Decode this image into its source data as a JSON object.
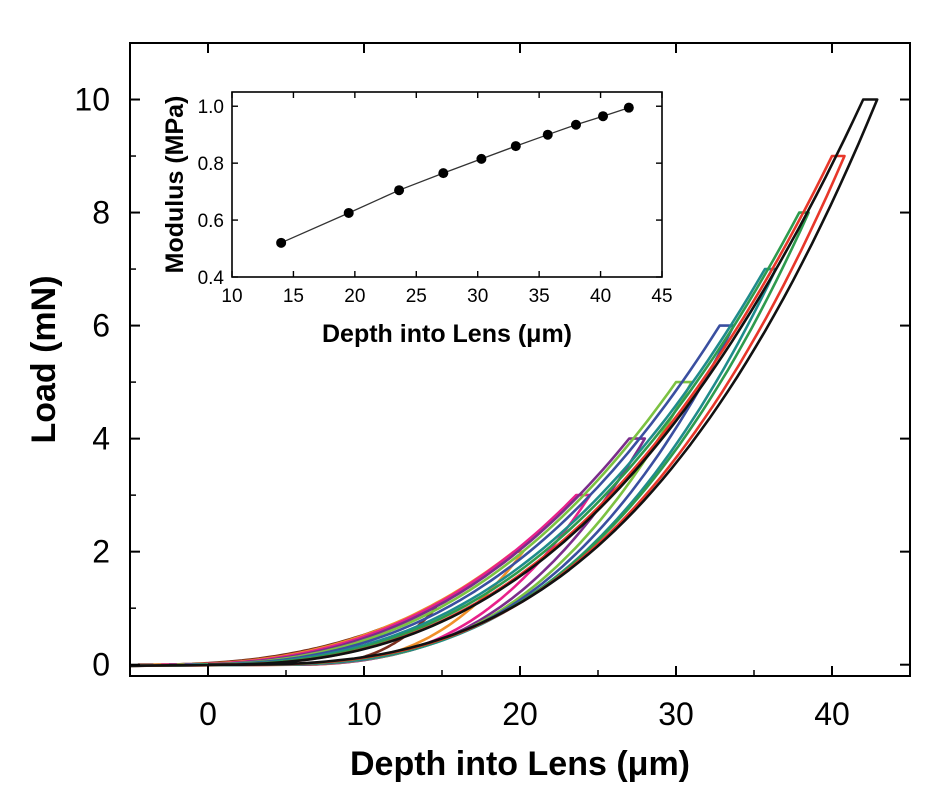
{
  "chart_data": [
    {
      "type": "line",
      "role": "main",
      "xlabel": "Depth into Lens (μm)",
      "ylabel": "Load (mN)",
      "xlim": [
        -5,
        45
      ],
      "ylim": [
        -0.2,
        11
      ],
      "xticks": [
        0,
        10,
        20,
        30,
        40
      ],
      "yticks": [
        0,
        2,
        4,
        6,
        8,
        10
      ],
      "grid": false,
      "series": [
        {
          "peak_load": 1,
          "loading_start_depth": -4.5,
          "unloading_end_depth": 5.5,
          "peak_depth": 14.2,
          "unload_depth": 14.6,
          "color": "#7a2e1e"
        },
        {
          "peak_load": 2,
          "loading_start_depth": -3.5,
          "unloading_end_depth": 5.0,
          "peak_depth": 19.6,
          "unload_depth": 20.2,
          "color": "#f0902a"
        },
        {
          "peak_load": 3,
          "loading_start_depth": -3.0,
          "unloading_end_depth": 4.5,
          "peak_depth": 23.6,
          "unload_depth": 24.5,
          "color": "#e8218a"
        },
        {
          "peak_load": 4,
          "loading_start_depth": -2.5,
          "unloading_end_depth": 4.0,
          "peak_depth": 27.0,
          "unload_depth": 28.0,
          "color": "#7b2d8b"
        },
        {
          "peak_load": 5,
          "loading_start_depth": -2.0,
          "unloading_end_depth": 3.5,
          "peak_depth": 30.0,
          "unload_depth": 31.0,
          "color": "#7cc242"
        },
        {
          "peak_load": 6,
          "loading_start_depth": -1.5,
          "unloading_end_depth": 3.0,
          "peak_depth": 32.8,
          "unload_depth": 33.7,
          "color": "#3a4fa0"
        },
        {
          "peak_load": 7,
          "loading_start_depth": -1.0,
          "unloading_end_depth": 2.5,
          "peak_depth": 35.7,
          "unload_depth": 36.4,
          "color": "#1f8c8c"
        },
        {
          "peak_load": 8,
          "loading_start_depth": -0.5,
          "unloading_end_depth": 2.0,
          "peak_depth": 37.9,
          "unload_depth": 38.5,
          "color": "#2e9b4e"
        },
        {
          "peak_load": 9,
          "loading_start_depth": 0.0,
          "unloading_end_depth": 1.5,
          "peak_depth": 40.0,
          "unload_depth": 40.8,
          "color": "#e8372a"
        },
        {
          "peak_load": 10,
          "loading_start_depth": 0.0,
          "unloading_end_depth": 1.0,
          "peak_depth": 42.0,
          "unload_depth": 42.9,
          "color": "#111111"
        }
      ]
    },
    {
      "type": "scatter",
      "role": "inset",
      "xlabel": "Depth into Lens (μm)",
      "ylabel": "Modulus (MPa)",
      "xlim": [
        10,
        45
      ],
      "ylim": [
        0.4,
        1.05
      ],
      "xticks": [
        10,
        15,
        20,
        25,
        30,
        35,
        40,
        45
      ],
      "yticks": [
        0.4,
        0.6,
        0.8,
        1.0
      ],
      "ytick_labels": [
        "0.4",
        "0.6",
        "0.8",
        "1.0"
      ],
      "grid": false,
      "points": [
        {
          "x": 14.0,
          "y": 0.52
        },
        {
          "x": 19.5,
          "y": 0.625
        },
        {
          "x": 23.6,
          "y": 0.705
        },
        {
          "x": 27.2,
          "y": 0.765
        },
        {
          "x": 30.3,
          "y": 0.815
        },
        {
          "x": 33.1,
          "y": 0.86
        },
        {
          "x": 35.7,
          "y": 0.9
        },
        {
          "x": 38.0,
          "y": 0.935
        },
        {
          "x": 40.2,
          "y": 0.965
        },
        {
          "x": 42.3,
          "y": 0.995
        }
      ]
    }
  ]
}
